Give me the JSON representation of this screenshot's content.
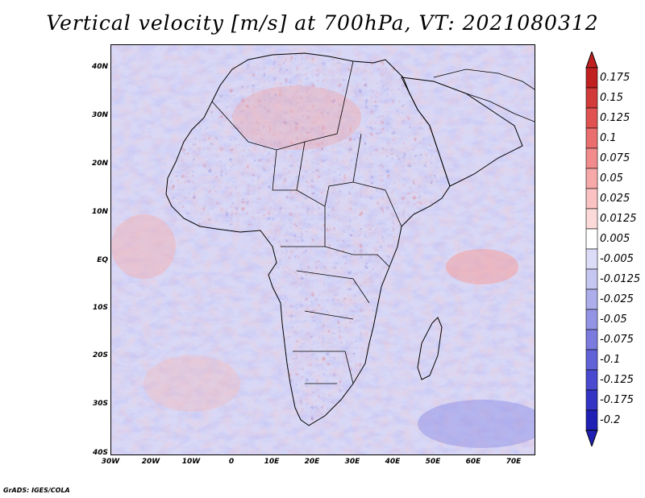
{
  "title": "Vertical velocity [m/s] at 700hPa, VT: 2021080312",
  "credit": "GrADS: IGES/COLA",
  "map": {
    "lat_labels": [
      "40N",
      "30N",
      "20N",
      "10N",
      "EQ",
      "10S",
      "20S",
      "30S",
      "40S"
    ],
    "lon_labels": [
      "30W",
      "20W",
      "10W",
      "0",
      "10E",
      "20E",
      "30E",
      "40E",
      "50E",
      "60E",
      "70E"
    ]
  },
  "colorbar": {
    "labels": [
      "0.175",
      "0.15",
      "0.125",
      "0.1",
      "0.075",
      "0.05",
      "0.025",
      "0.0125",
      "0.005",
      "-0.005",
      "-0.0125",
      "-0.025",
      "-0.05",
      "-0.075",
      "-0.1",
      "-0.125",
      "-0.175",
      "-0.2"
    ],
    "colors": [
      "#c02020",
      "#d23a3a",
      "#e05252",
      "#ea6e6e",
      "#f28c8c",
      "#f7a8a8",
      "#fac2c2",
      "#fcdada",
      "#ffffff",
      "#dcdcf8",
      "#c6c6f2",
      "#adadec",
      "#9494e6",
      "#7b7bdf",
      "#6262d8",
      "#4a4ad0",
      "#3434c4",
      "#2020b4"
    ]
  }
}
